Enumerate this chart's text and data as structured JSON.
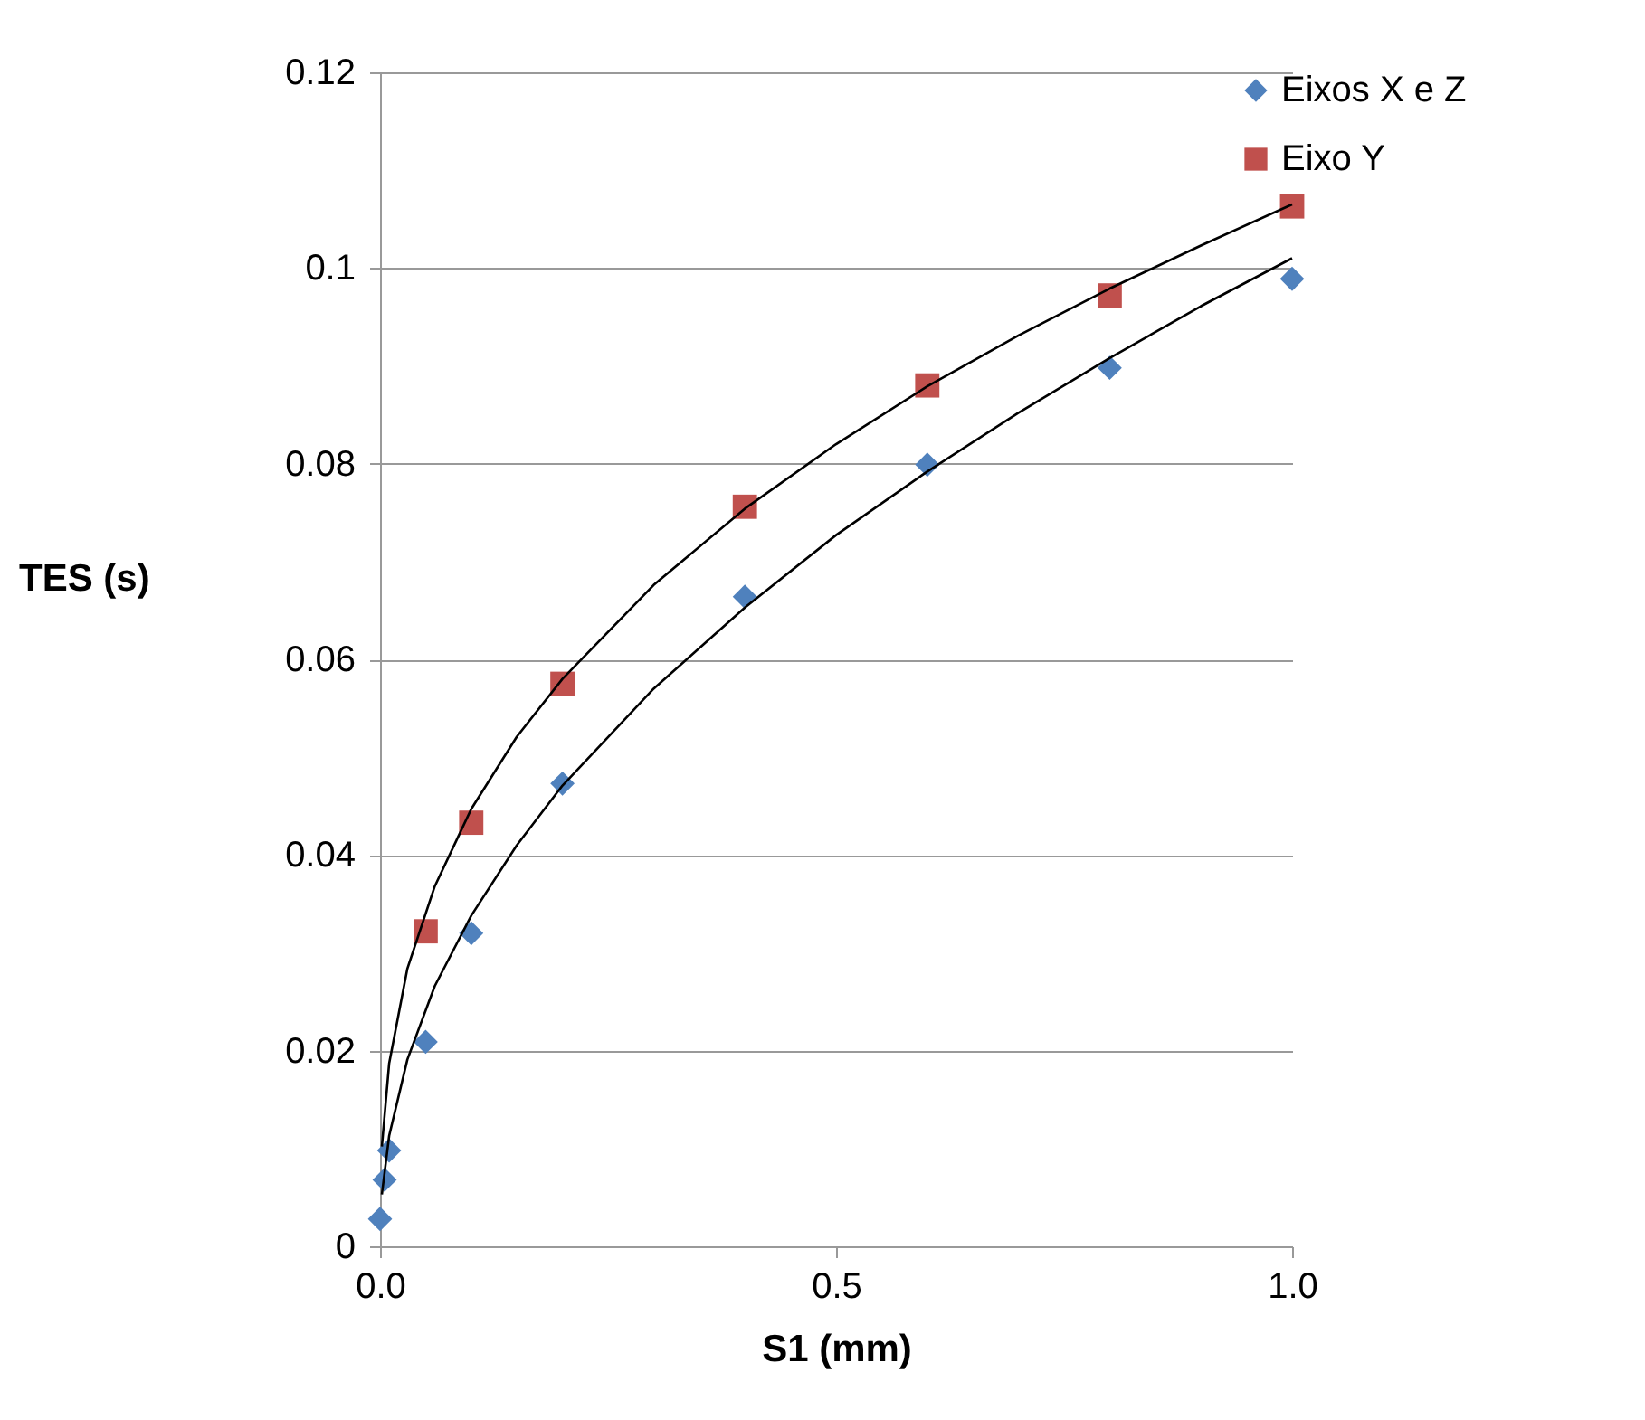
{
  "chart_data": {
    "type": "scatter",
    "xlabel": "S1 (mm)",
    "ylabel": "TES (s)",
    "xlim": [
      0,
      1
    ],
    "ylim": [
      0,
      0.12
    ],
    "xticks": [
      {
        "value": 0,
        "label": "0.0"
      },
      {
        "value": 0.5,
        "label": "0.5"
      },
      {
        "value": 1,
        "label": "1.0"
      }
    ],
    "yticks": [
      0,
      0.02,
      0.04,
      0.06,
      0.08,
      0.1,
      0.12
    ],
    "grid": "y",
    "legend": "right",
    "series": [
      {
        "name": "Eixos X e Z",
        "marker": "diamond",
        "color": "#4f81bd",
        "x": [
          0,
          0.005,
          0.01,
          0.05,
          0.1,
          0.2,
          0.4,
          0.6,
          0.8,
          1
        ],
        "values": [
          0.0028,
          0.0068,
          0.0098,
          0.0209,
          0.032,
          0.0473,
          0.0664,
          0.0799,
          0.0898,
          0.0989
        ]
      },
      {
        "name": "Eixo Y",
        "marker": "square",
        "color": "#c0504d",
        "x": [
          0.05,
          0.1,
          0.2,
          0.4,
          0.6,
          0.8,
          1
        ],
        "values": [
          0.0322,
          0.0433,
          0.0575,
          0.0756,
          0.088,
          0.0972,
          0.1063
        ]
      },
      {
        "type": "line",
        "color": "#000000",
        "x": [
          0.002,
          0.01,
          0.03,
          0.06,
          0.1,
          0.15,
          0.2,
          0.3,
          0.4,
          0.5,
          0.6,
          0.7,
          0.8,
          0.9,
          1
        ],
        "values": [
          0.0053,
          0.0113,
          0.0191,
          0.0266,
          0.0338,
          0.041,
          0.0471,
          0.057,
          0.0653,
          0.0727,
          0.0792,
          0.0852,
          0.0908,
          0.0961,
          0.101
        ]
      },
      {
        "type": "line",
        "color": "#000000",
        "x": [
          0.002,
          0.01,
          0.03,
          0.06,
          0.1,
          0.15,
          0.2,
          0.3,
          0.4,
          0.5,
          0.6,
          0.7,
          0.8,
          0.9,
          1
        ],
        "values": [
          0.0102,
          0.0187,
          0.0284,
          0.0368,
          0.0447,
          0.0521,
          0.058,
          0.0676,
          0.0754,
          0.082,
          0.0879,
          0.0931,
          0.0979,
          0.1023,
          0.1065
        ]
      }
    ]
  }
}
